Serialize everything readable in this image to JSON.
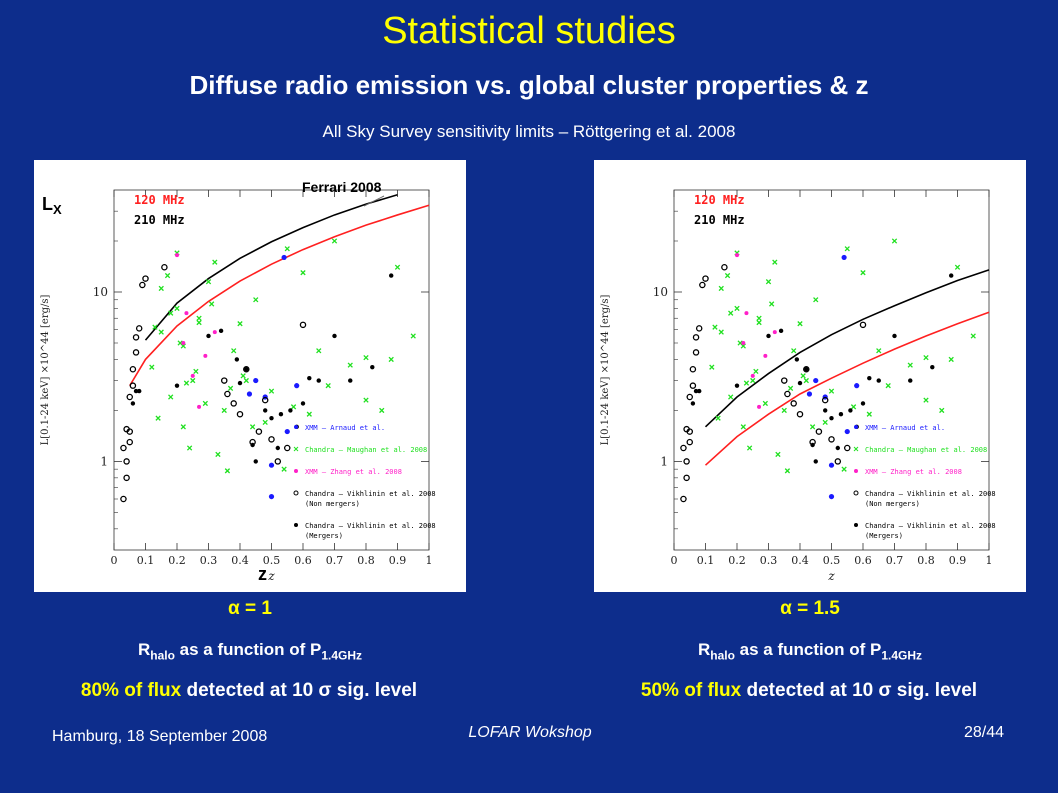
{
  "slide": {
    "title": "Statistical studies",
    "subtitle": "Diffuse radio emission vs. global cluster properties & z",
    "survey_note": "All Sky Survey sensitivity limits – Röttgering et al. 2008",
    "footer_left": "Hamburg, 18 September 2008",
    "footer_center": "LOFAR Wokshop",
    "footer_right": "28/44"
  },
  "panels": [
    {
      "alpha_label": "α = 1",
      "rhalo_main": "R",
      "rhalo_sub": "halo",
      "rhalo_mid": " as a function of P",
      "rhalo_sub2": "1.4GHz",
      "flux_highlight": "80% of flux",
      "flux_rest": " detected at 10 σ sig. level",
      "annotation_lx": "LX",
      "annotation_z": "z",
      "annotation_ref": "Ferrari 2008"
    },
    {
      "alpha_label": "α = 1.5",
      "rhalo_main": "R",
      "rhalo_sub": "halo",
      "rhalo_mid": " as a function of P",
      "rhalo_sub2": "1.4GHz",
      "flux_highlight": "50% of flux",
      "flux_rest": " detected at 10 σ sig. level"
    }
  ],
  "chart_data": [
    {
      "type": "scatter",
      "xlabel": "z",
      "ylabel": "L[0.1-24 keV] ×10^44 [erg/s]",
      "xlim": [
        0,
        1.0
      ],
      "ylim": [
        0.3,
        40
      ],
      "log_y": true,
      "x_ticks": [
        "0",
        "0.1",
        "0.2",
        "0.3",
        "0.4",
        "0.5",
        "0.6",
        "0.7",
        "0.8",
        "0.9",
        "1"
      ],
      "y_ticks": [
        "1",
        "10"
      ],
      "legend_top": [
        "120 MHz",
        "210 MHz"
      ],
      "legend_bottom": [
        "XMM – Arnaud et al.",
        "Chandra – Maughan et al. 2008",
        "XMM – Zhang et al. 2008",
        "Chandra – Vikhlinin et al. 2008 (Non mergers)",
        "Chandra – Vikhlinin et al. 2008 (Mergers)"
      ],
      "colors": {
        "c120": "#ff2020",
        "c210": "#000000",
        "xmm": "#1a1aff",
        "chandra_m": "#20e020",
        "zhang": "#ff20c8",
        "merger": "#000000"
      },
      "curves": [
        {
          "name": "120 MHz",
          "x": [
            0.05,
            0.1,
            0.2,
            0.3,
            0.4,
            0.5,
            0.6,
            0.7,
            0.8,
            0.9,
            1.0
          ],
          "y": [
            2.8,
            4.0,
            6.3,
            8.8,
            11.6,
            14.6,
            17.8,
            21.2,
            24.8,
            28.5,
            32.5
          ]
        },
        {
          "name": "210 MHz",
          "x": [
            0.1,
            0.2,
            0.3,
            0.4,
            0.5,
            0.6,
            0.7,
            0.8,
            0.9
          ],
          "y": [
            5.2,
            8.6,
            12.0,
            15.8,
            19.8,
            24.0,
            28.5,
            33.0,
            37.5
          ]
        }
      ],
      "series": [
        {
          "name": "XMM – Arnaud et al.",
          "x": [
            0.5,
            0.54,
            0.45,
            0.58,
            0.5,
            0.55,
            0.43,
            0.48
          ],
          "y": [
            0.62,
            16,
            3.0,
            2.8,
            0.95,
            1.5,
            2.5,
            2.4
          ]
        },
        {
          "name": "Chandra – Maughan et al. 2008",
          "x": [
            0.12,
            0.15,
            0.18,
            0.2,
            0.22,
            0.25,
            0.27,
            0.3,
            0.32,
            0.35,
            0.38,
            0.4,
            0.42,
            0.45,
            0.48,
            0.5,
            0.55,
            0.6,
            0.65,
            0.7,
            0.75,
            0.8,
            0.85,
            0.9,
            0.95,
            0.15,
            0.18,
            0.22,
            0.26,
            0.29,
            0.33,
            0.37,
            0.54,
            0.57,
            0.14,
            0.21,
            0.24,
            0.31,
            0.44,
            0.2,
            0.17,
            0.13,
            0.36,
            0.41,
            0.62,
            0.68,
            0.8,
            0.88,
            0.27,
            0.23
          ],
          "y": [
            3.6,
            5.8,
            2.4,
            8.0,
            1.6,
            3.0,
            7.0,
            11.5,
            15.0,
            2.0,
            4.5,
            6.5,
            3.0,
            9.0,
            1.7,
            2.6,
            18.0,
            13.0,
            4.5,
            20.0,
            3.7,
            2.3,
            2.0,
            14.0,
            5.5,
            10.5,
            7.5,
            4.8,
            3.4,
            2.2,
            1.1,
            2.7,
            0.9,
            2.1,
            1.8,
            5.0,
            1.2,
            8.5,
            1.6,
            17.0,
            12.5,
            6.2,
            0.88,
            3.2,
            1.9,
            2.8,
            4.1,
            4.0,
            6.6,
            2.9
          ]
        },
        {
          "name": "XMM – Zhang et al. 2008",
          "x": [
            0.2,
            0.23,
            0.25,
            0.29,
            0.32,
            0.27,
            0.22
          ],
          "y": [
            16.5,
            7.5,
            3.2,
            4.2,
            5.8,
            2.1,
            5.0
          ]
        },
        {
          "name": "Chandra – Vikhlinin et al. 2008 (Non mergers)",
          "x": [
            0.03,
            0.04,
            0.05,
            0.05,
            0.06,
            0.07,
            0.08,
            0.09,
            0.03,
            0.04,
            0.05,
            0.06,
            0.07,
            0.16,
            0.1,
            0.35,
            0.4,
            0.38,
            0.44,
            0.42,
            0.46,
            0.5,
            0.6,
            0.48,
            0.04,
            0.36,
            0.52,
            0.55
          ],
          "y": [
            0.6,
            1.0,
            1.3,
            1.5,
            2.8,
            4.4,
            6.1,
            11.0,
            1.2,
            1.55,
            2.4,
            3.5,
            5.4,
            14.0,
            12.0,
            3.0,
            1.9,
            2.2,
            1.3,
            3.5,
            1.5,
            1.35,
            6.4,
            2.3,
            0.8,
            2.5,
            1.0,
            1.2
          ]
        },
        {
          "name": "Chandra – Vikhlinin et al. 2008 (Mergers)",
          "x": [
            0.06,
            0.07,
            0.08,
            0.2,
            0.3,
            0.4,
            0.42,
            0.44,
            0.5,
            0.52,
            0.56,
            0.6,
            0.65,
            0.7,
            0.75,
            0.82,
            0.88,
            0.48,
            0.53,
            0.58,
            0.62,
            0.45,
            0.34,
            0.39
          ],
          "y": [
            2.2,
            2.6,
            2.6,
            2.8,
            5.5,
            2.9,
            3.5,
            1.25,
            1.8,
            1.2,
            2.0,
            2.2,
            3.0,
            5.5,
            3.0,
            3.6,
            12.5,
            2.0,
            1.9,
            1.6,
            3.1,
            1.0,
            5.9,
            4.0
          ]
        }
      ]
    },
    {
      "type": "scatter",
      "xlabel": "z",
      "ylabel": "L[0.1-24 keV] ×10^44 [erg/s]",
      "xlim": [
        0,
        1.0
      ],
      "ylim": [
        0.3,
        40
      ],
      "log_y": true,
      "x_ticks": [
        "0",
        "0.1",
        "0.2",
        "0.3",
        "0.4",
        "0.5",
        "0.6",
        "0.7",
        "0.8",
        "0.9",
        "1"
      ],
      "y_ticks": [
        "1",
        "10"
      ],
      "legend_top": [
        "120 MHz",
        "210 MHz"
      ],
      "legend_bottom": [
        "XMM – Arnaud et al.",
        "Chandra – Maughan et al. 2008",
        "XMM – Zhang et al. 2008",
        "Chandra – Vikhlinin et al. 2008 (Non mergers)",
        "Chandra – Vikhlinin et al. 2008 (Mergers)"
      ],
      "colors": {
        "c120": "#ff2020",
        "c210": "#000000",
        "xmm": "#1a1aff",
        "chandra_m": "#20e020",
        "zhang": "#ff20c8",
        "merger": "#000000"
      },
      "curves": [
        {
          "name": "120 MHz",
          "x": [
            0.1,
            0.2,
            0.3,
            0.4,
            0.5,
            0.6,
            0.7,
            0.8,
            0.9,
            1.0
          ],
          "y": [
            0.95,
            1.4,
            1.9,
            2.5,
            3.1,
            3.8,
            4.6,
            5.5,
            6.5,
            7.6
          ]
        },
        {
          "name": "210 MHz",
          "x": [
            0.1,
            0.2,
            0.3,
            0.4,
            0.5,
            0.6,
            0.7,
            0.8,
            0.9,
            1.0
          ],
          "y": [
            1.6,
            2.4,
            3.3,
            4.4,
            5.6,
            6.9,
            8.3,
            9.9,
            11.7,
            13.5
          ]
        }
      ],
      "series": [
        {
          "name": "XMM – Arnaud et al.",
          "x": [
            0.5,
            0.54,
            0.45,
            0.58,
            0.5,
            0.55,
            0.43,
            0.48
          ],
          "y": [
            0.62,
            16,
            3.0,
            2.8,
            0.95,
            1.5,
            2.5,
            2.4
          ]
        },
        {
          "name": "Chandra – Maughan et al. 2008",
          "x": [
            0.12,
            0.15,
            0.18,
            0.2,
            0.22,
            0.25,
            0.27,
            0.3,
            0.32,
            0.35,
            0.38,
            0.4,
            0.42,
            0.45,
            0.48,
            0.5,
            0.55,
            0.6,
            0.65,
            0.7,
            0.75,
            0.8,
            0.85,
            0.9,
            0.95,
            0.15,
            0.18,
            0.22,
            0.26,
            0.29,
            0.33,
            0.37,
            0.54,
            0.57,
            0.14,
            0.21,
            0.24,
            0.31,
            0.44,
            0.2,
            0.17,
            0.13,
            0.36,
            0.41,
            0.62,
            0.68,
            0.8,
            0.88,
            0.27,
            0.23
          ],
          "y": [
            3.6,
            5.8,
            2.4,
            8.0,
            1.6,
            3.0,
            7.0,
            11.5,
            15.0,
            2.0,
            4.5,
            6.5,
            3.0,
            9.0,
            1.7,
            2.6,
            18.0,
            13.0,
            4.5,
            20.0,
            3.7,
            2.3,
            2.0,
            14.0,
            5.5,
            10.5,
            7.5,
            4.8,
            3.4,
            2.2,
            1.1,
            2.7,
            0.9,
            2.1,
            1.8,
            5.0,
            1.2,
            8.5,
            1.6,
            17.0,
            12.5,
            6.2,
            0.88,
            3.2,
            1.9,
            2.8,
            4.1,
            4.0,
            6.6,
            2.9
          ]
        },
        {
          "name": "XMM – Zhang et al. 2008",
          "x": [
            0.2,
            0.23,
            0.25,
            0.29,
            0.32,
            0.27,
            0.22
          ],
          "y": [
            16.5,
            7.5,
            3.2,
            4.2,
            5.8,
            2.1,
            5.0
          ]
        },
        {
          "name": "Chandra – Vikhlinin et al. 2008 (Non mergers)",
          "x": [
            0.03,
            0.04,
            0.05,
            0.05,
            0.06,
            0.07,
            0.08,
            0.09,
            0.03,
            0.04,
            0.05,
            0.06,
            0.07,
            0.16,
            0.1,
            0.35,
            0.4,
            0.38,
            0.44,
            0.42,
            0.46,
            0.5,
            0.6,
            0.48,
            0.04,
            0.36,
            0.52,
            0.55
          ],
          "y": [
            0.6,
            1.0,
            1.3,
            1.5,
            2.8,
            4.4,
            6.1,
            11.0,
            1.2,
            1.55,
            2.4,
            3.5,
            5.4,
            14.0,
            12.0,
            3.0,
            1.9,
            2.2,
            1.3,
            3.5,
            1.5,
            1.35,
            6.4,
            2.3,
            0.8,
            2.5,
            1.0,
            1.2
          ]
        },
        {
          "name": "Chandra – Vikhlinin et al. 2008 (Mergers)",
          "x": [
            0.06,
            0.07,
            0.08,
            0.2,
            0.3,
            0.4,
            0.42,
            0.44,
            0.5,
            0.52,
            0.56,
            0.6,
            0.65,
            0.7,
            0.75,
            0.82,
            0.88,
            0.48,
            0.53,
            0.58,
            0.62,
            0.45,
            0.34,
            0.39
          ],
          "y": [
            2.2,
            2.6,
            2.6,
            2.8,
            5.5,
            2.9,
            3.5,
            1.25,
            1.8,
            1.2,
            2.0,
            2.2,
            3.0,
            5.5,
            3.0,
            3.6,
            12.5,
            2.0,
            1.9,
            1.6,
            3.1,
            1.0,
            5.9,
            4.0
          ]
        }
      ]
    }
  ]
}
